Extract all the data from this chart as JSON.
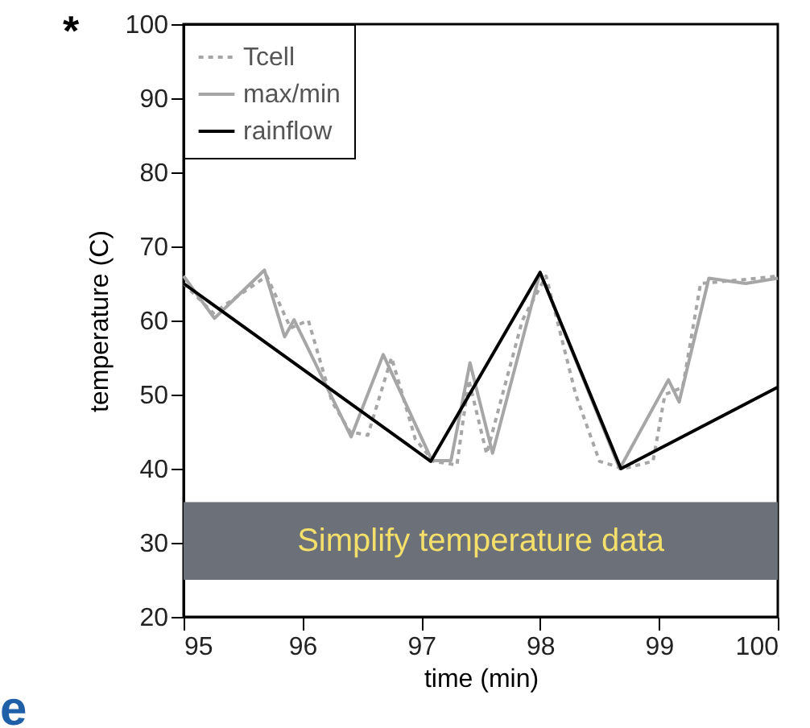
{
  "chart_data": {
    "type": "line",
    "xlabel": "time (min)",
    "ylabel": "temperature (C)",
    "xlim": [
      95,
      100
    ],
    "xticks": [
      95,
      96,
      97,
      98,
      99,
      100
    ],
    "ylim": [
      20,
      100
    ],
    "yticks": [
      20,
      30,
      40,
      50,
      60,
      70,
      80,
      90,
      100
    ],
    "grid": false,
    "legend": "top left",
    "marker": "none",
    "annotations": [
      "*",
      "e"
    ],
    "bands": [
      {
        "axis": "y",
        "from": 25,
        "to": 35.5,
        "label": "Simplify temperature data",
        "color": "#6b7079"
      }
    ],
    "series": [
      {
        "name": "Tcell",
        "color": "#a6a6a6",
        "line_style": "dotted",
        "x": [
          95,
          95.25,
          95.7,
          95.9,
          96.05,
          96.25,
          96.4,
          96.55,
          96.75,
          96.95,
          97.1,
          97.3,
          97.4,
          97.55,
          97.85,
          98.05,
          98.3,
          98.5,
          98.7,
          98.95,
          99.05,
          99.2,
          99.35,
          99.7,
          100
        ],
        "values": [
          65,
          61,
          66,
          59,
          60,
          49,
          45,
          44.5,
          55,
          44,
          41,
          40.5,
          52,
          42,
          60,
          66,
          50,
          41,
          40,
          41,
          50,
          51,
          65,
          65.5,
          66
        ]
      },
      {
        "name": "max/min",
        "color": "#a6a6a6",
        "line_style": "solid",
        "x": [
          95,
          95.26,
          95.68,
          95.85,
          95.93,
          96.41,
          96.68,
          97.09,
          97.25,
          97.41,
          97.6,
          98.0,
          98.67,
          99.08,
          99.17,
          99.42,
          99.73,
          100
        ],
        "values": [
          66,
          60.3,
          66.8,
          57.8,
          60.1,
          44.3,
          55.4,
          41.1,
          41.1,
          54.3,
          42.1,
          66.5,
          40,
          52,
          49,
          65.7,
          65,
          65.7
        ]
      },
      {
        "name": "rainflow",
        "color": "#000000",
        "line_style": "solid",
        "x": [
          95,
          97.08,
          98,
          98.68,
          100
        ],
        "values": [
          65,
          41,
          66.5,
          40,
          51
        ]
      }
    ]
  }
}
